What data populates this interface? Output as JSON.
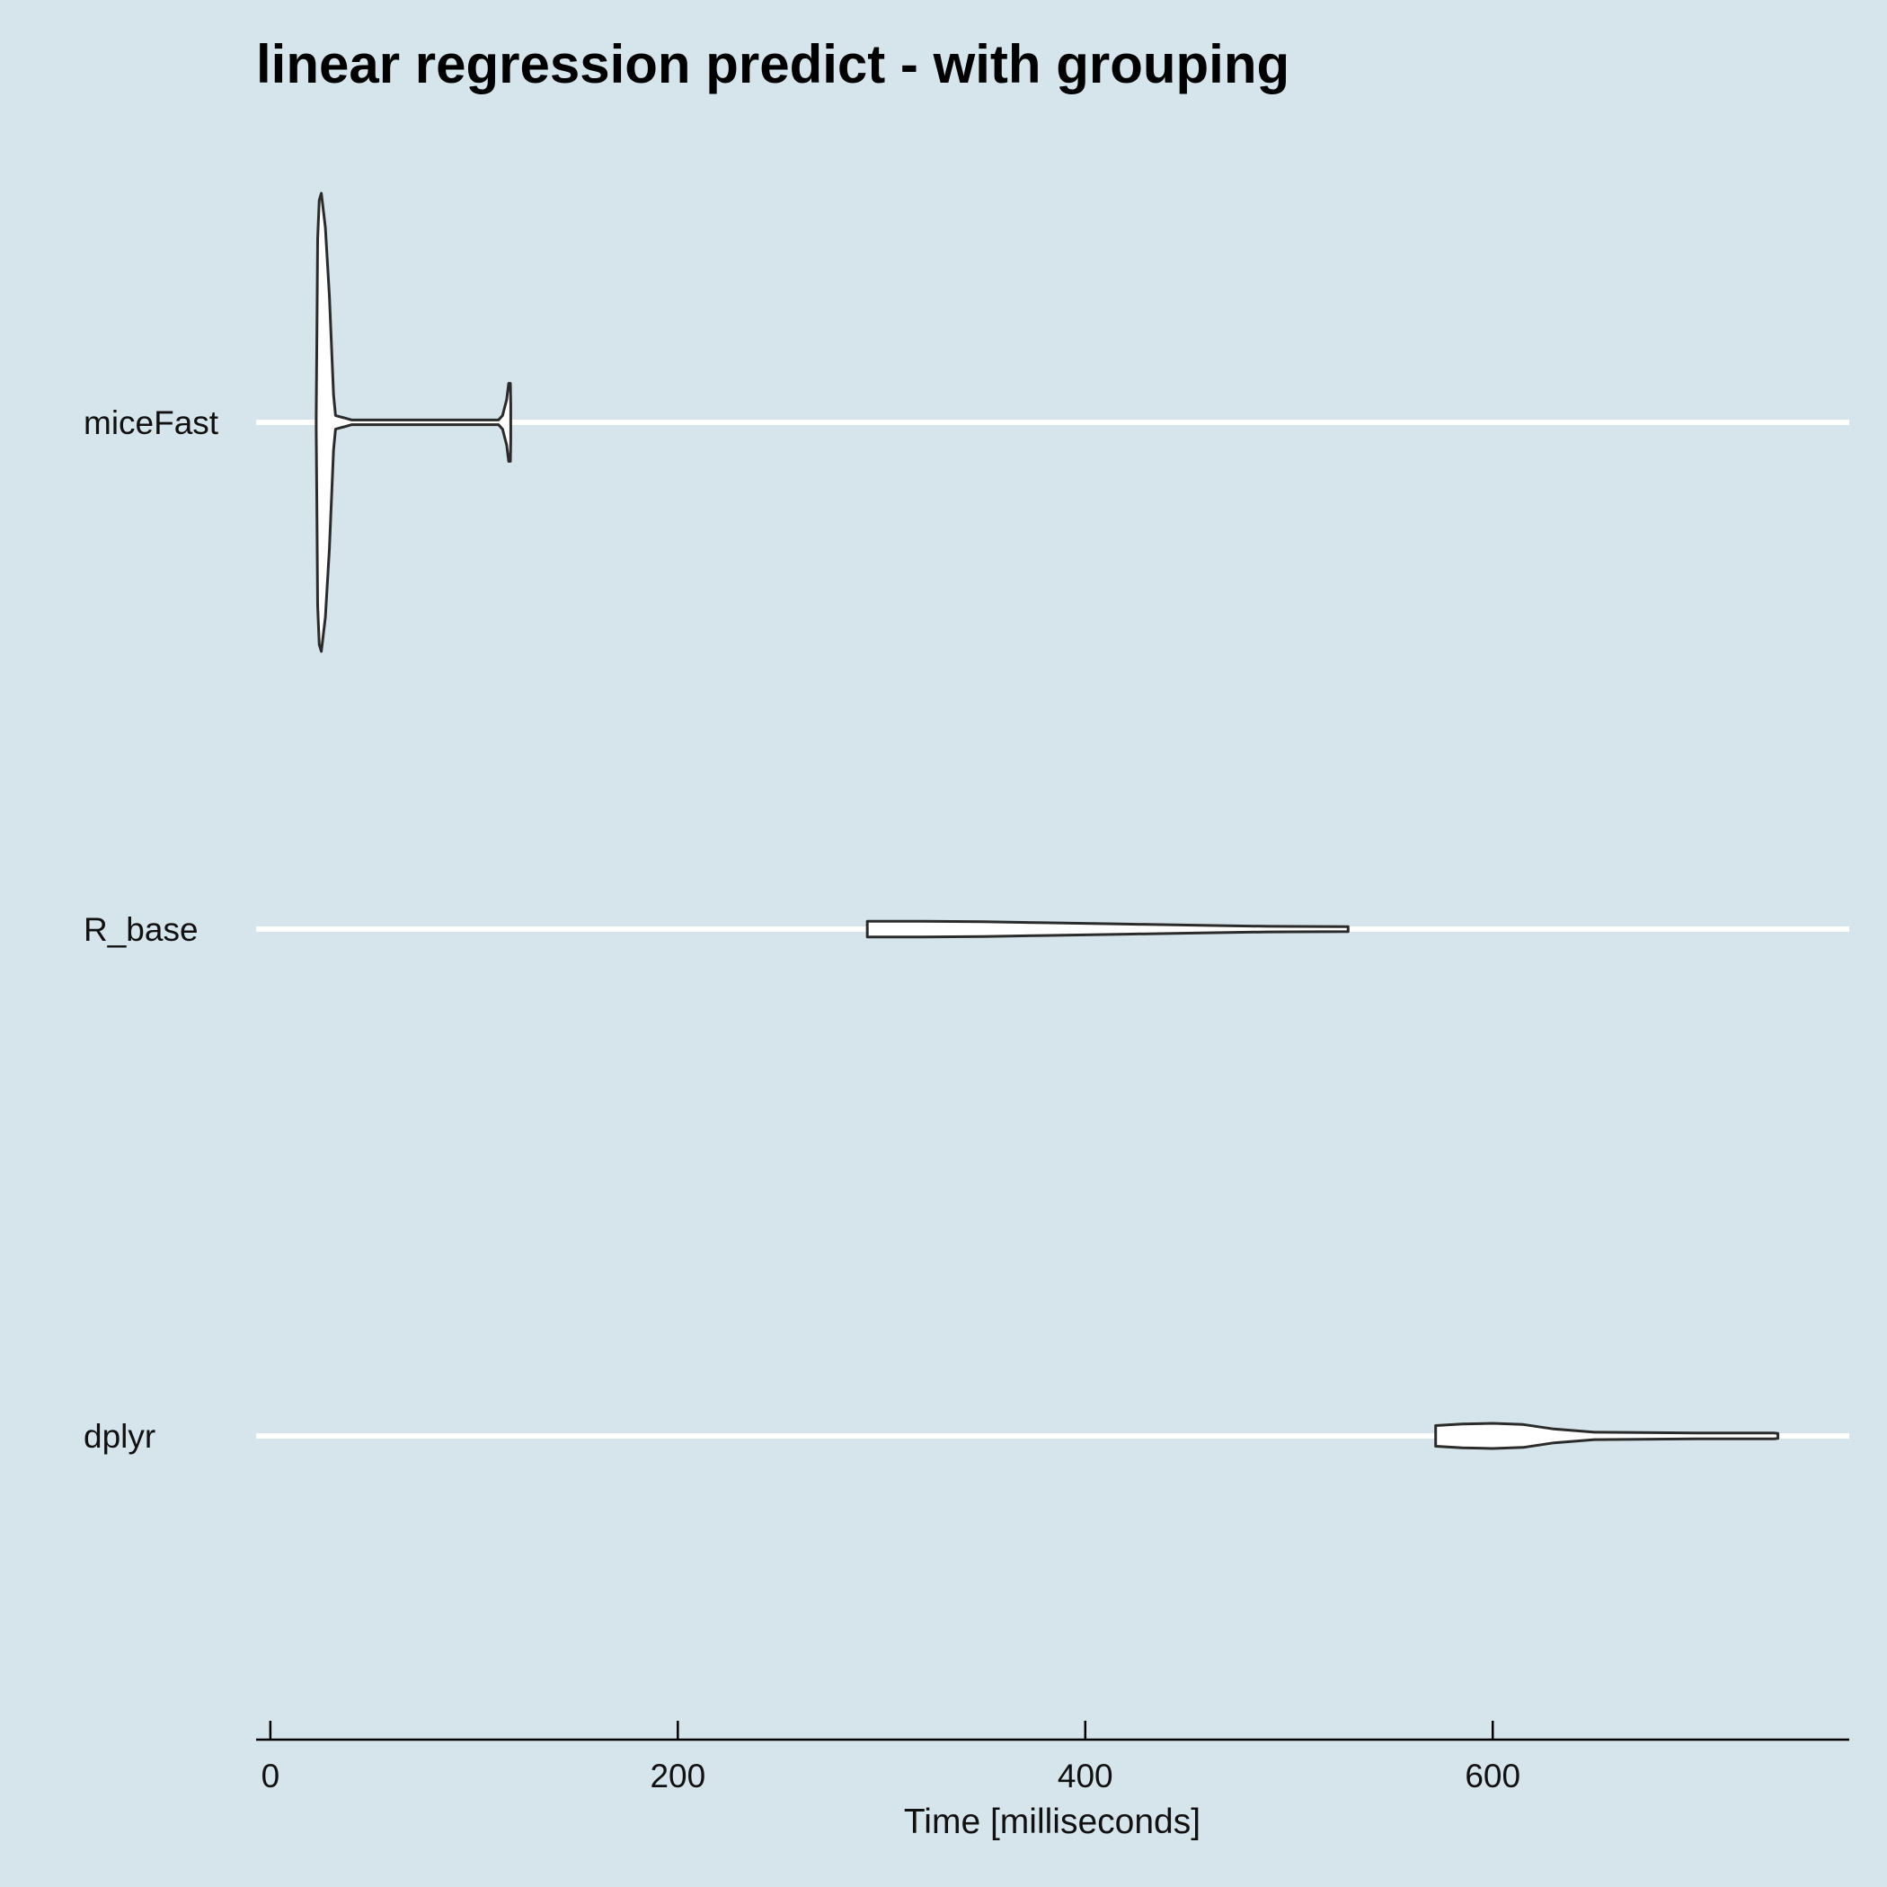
{
  "chart_data": {
    "type": "violin",
    "orientation": "horizontal",
    "title": "linear regression predict - with grouping",
    "xlabel": "Time [milliseconds]",
    "ylabel": "",
    "xlim": [
      -7,
      775
    ],
    "xticks": [
      0,
      200,
      400,
      600
    ],
    "grid": "major horizontal lines only",
    "background": "#d6e4eb",
    "categories": [
      "miceFast",
      "R_base",
      "dplyr"
    ],
    "distributions": [
      {
        "category": "miceFast",
        "min": 22.5,
        "max": 118,
        "density": [
          [
            22.5,
            0.03
          ],
          [
            22.8,
            0.35
          ],
          [
            23.2,
            0.8
          ],
          [
            24,
            0.97
          ],
          [
            25,
            1.0
          ],
          [
            27,
            0.85
          ],
          [
            29,
            0.55
          ],
          [
            31,
            0.12
          ],
          [
            32,
            0.03
          ],
          [
            40,
            0.01
          ],
          [
            112,
            0.01
          ],
          [
            114,
            0.03
          ],
          [
            116,
            0.1
          ],
          [
            117,
            0.17
          ],
          [
            117.8,
            0.17
          ],
          [
            118,
            0.08
          ]
        ]
      },
      {
        "category": "R_base",
        "min": 293,
        "max": 529,
        "density": [
          [
            293,
            0.034
          ],
          [
            320,
            0.034
          ],
          [
            350,
            0.032
          ],
          [
            380,
            0.028
          ],
          [
            420,
            0.022
          ],
          [
            460,
            0.016
          ],
          [
            490,
            0.012
          ],
          [
            529,
            0.011
          ]
        ]
      },
      {
        "category": "dplyr",
        "min": 572,
        "max": 740,
        "density": [
          [
            572,
            0.045
          ],
          [
            585,
            0.052
          ],
          [
            600,
            0.055
          ],
          [
            615,
            0.05
          ],
          [
            630,
            0.03
          ],
          [
            650,
            0.016
          ],
          [
            700,
            0.013
          ],
          [
            738,
            0.013
          ],
          [
            740,
            0.011
          ]
        ]
      }
    ],
    "colors": {
      "fill": "#ffffff",
      "outline": "#2b2b2b",
      "grid": "#ffffff"
    }
  }
}
